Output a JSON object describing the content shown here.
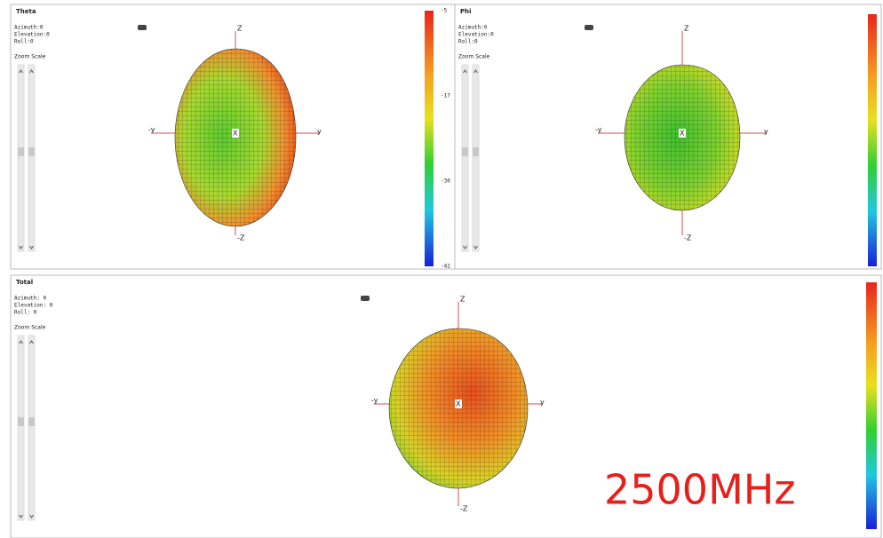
{
  "panels": [
    {
      "title": "Theta",
      "azimuth": "Azimuth:0",
      "elevation": "Elevation:0",
      "roll": "Roll:0",
      "zoom": "Zoom Scale",
      "axes": {
        "z": "Z",
        "neg_y": "-y",
        "y": "y",
        "x": "X",
        "neg_z": "-Z"
      },
      "scale_labels": [
        "-5",
        "-17",
        "-30",
        "-42"
      ]
    },
    {
      "title": "Phi",
      "azimuth": "Azimuth:0",
      "elevation": "Elevation:0",
      "roll": "Roll:0",
      "zoom": "Zoom Scale",
      "axes": {
        "z": "Z",
        "neg_y": "-y",
        "y": "y",
        "x": "X",
        "neg_z": "-Z"
      }
    },
    {
      "title": "Total",
      "azimuth": "Azimuth: 0",
      "elevation": "Elevation: 0",
      "roll": "Roll: 0",
      "zoom": "Zoom Scale",
      "axes": {
        "z": "Z",
        "neg_y": "-y",
        "y": "y",
        "x": "X",
        "neg_z": "-Z"
      }
    }
  ],
  "frequency": "2500MHz"
}
